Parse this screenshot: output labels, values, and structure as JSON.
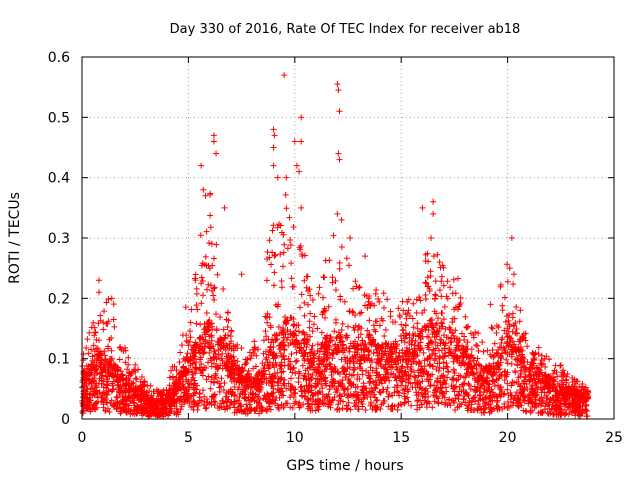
{
  "chart_data": {
    "type": "scatter",
    "title": "Day 330 of 2016, Rate Of TEC Index for receiver ab18",
    "xlabel": "GPS time / hours",
    "ylabel": "ROTI / TECUs",
    "xlim": [
      0,
      25
    ],
    "ylim": [
      0,
      0.6
    ],
    "xticks": [
      0,
      5,
      10,
      15,
      20,
      25
    ],
    "yticks": [
      0,
      0.1,
      0.2,
      0.3,
      0.4,
      0.5,
      0.6
    ],
    "xtick_labels": [
      "0",
      "5",
      "10",
      "15",
      "20",
      "25"
    ],
    "ytick_labels": [
      "0",
      "0.1",
      "0.2",
      "0.3",
      "0.4",
      "0.5",
      "0.6"
    ],
    "grid": true,
    "marker": "+",
    "color": "#ff0000",
    "series": [
      {
        "name": "ROTI",
        "envelope_x": [
          0,
          0.5,
          1,
          1.5,
          2,
          2.5,
          3,
          3.5,
          4,
          4.5,
          5,
          5.5,
          6,
          6.5,
          7,
          7.5,
          8,
          8.5,
          9,
          9.5,
          10,
          10.5,
          11,
          11.5,
          12,
          12.5,
          13,
          13.5,
          14,
          14.5,
          15,
          15.5,
          16,
          16.5,
          17,
          17.5,
          18,
          18.5,
          19,
          19.5,
          20,
          20.5,
          21,
          21.5,
          22,
          22.5,
          23,
          23.5,
          23.8
        ],
        "envelope_typical": [
          0.05,
          0.08,
          0.08,
          0.07,
          0.05,
          0.04,
          0.03,
          0.02,
          0.03,
          0.05,
          0.08,
          0.1,
          0.12,
          0.1,
          0.07,
          0.06,
          0.05,
          0.06,
          0.1,
          0.12,
          0.12,
          0.1,
          0.08,
          0.1,
          0.1,
          0.1,
          0.09,
          0.1,
          0.09,
          0.09,
          0.1,
          0.1,
          0.11,
          0.12,
          0.12,
          0.1,
          0.09,
          0.07,
          0.06,
          0.08,
          0.12,
          0.1,
          0.07,
          0.06,
          0.05,
          0.04,
          0.04,
          0.03,
          0.03
        ],
        "envelope_high": [
          0.12,
          0.16,
          0.22,
          0.19,
          0.12,
          0.1,
          0.06,
          0.05,
          0.05,
          0.15,
          0.2,
          0.3,
          0.38,
          0.25,
          0.15,
          0.12,
          0.12,
          0.2,
          0.38,
          0.4,
          0.32,
          0.28,
          0.2,
          0.28,
          0.32,
          0.3,
          0.22,
          0.22,
          0.22,
          0.19,
          0.2,
          0.2,
          0.28,
          0.3,
          0.25,
          0.25,
          0.2,
          0.15,
          0.12,
          0.19,
          0.28,
          0.18,
          0.13,
          0.12,
          0.1,
          0.09,
          0.07,
          0.06,
          0.05
        ],
        "extreme_points": [
          [
            0.8,
            0.23
          ],
          [
            0.8,
            0.21
          ],
          [
            1.4,
            0.2
          ],
          [
            5.6,
            0.42
          ],
          [
            5.7,
            0.38
          ],
          [
            5.8,
            0.37
          ],
          [
            6.2,
            0.47
          ],
          [
            6.2,
            0.46
          ],
          [
            6.3,
            0.44
          ],
          [
            6.7,
            0.35
          ],
          [
            7.5,
            0.24
          ],
          [
            9.0,
            0.48
          ],
          [
            9.05,
            0.47
          ],
          [
            9.0,
            0.45
          ],
          [
            9.0,
            0.42
          ],
          [
            9.2,
            0.4
          ],
          [
            9.5,
            0.57
          ],
          [
            9.6,
            0.4
          ],
          [
            10.0,
            0.46
          ],
          [
            10.1,
            0.42
          ],
          [
            10.2,
            0.41
          ],
          [
            10.3,
            0.5
          ],
          [
            10.3,
            0.46
          ],
          [
            10.3,
            0.35
          ],
          [
            12.0,
            0.555
          ],
          [
            12.05,
            0.545
          ],
          [
            12.1,
            0.51
          ],
          [
            12.05,
            0.44
          ],
          [
            12.1,
            0.43
          ],
          [
            12.0,
            0.34
          ],
          [
            12.2,
            0.33
          ],
          [
            12.6,
            0.3
          ],
          [
            13.3,
            0.27
          ],
          [
            16.5,
            0.36
          ],
          [
            16.5,
            0.34
          ],
          [
            16.0,
            0.35
          ],
          [
            16.4,
            0.3
          ],
          [
            20.2,
            0.3
          ],
          [
            20.1,
            0.25
          ],
          [
            20.3,
            0.24
          ],
          [
            20.6,
            0.18
          ],
          [
            19.2,
            0.19
          ]
        ]
      }
    ]
  }
}
